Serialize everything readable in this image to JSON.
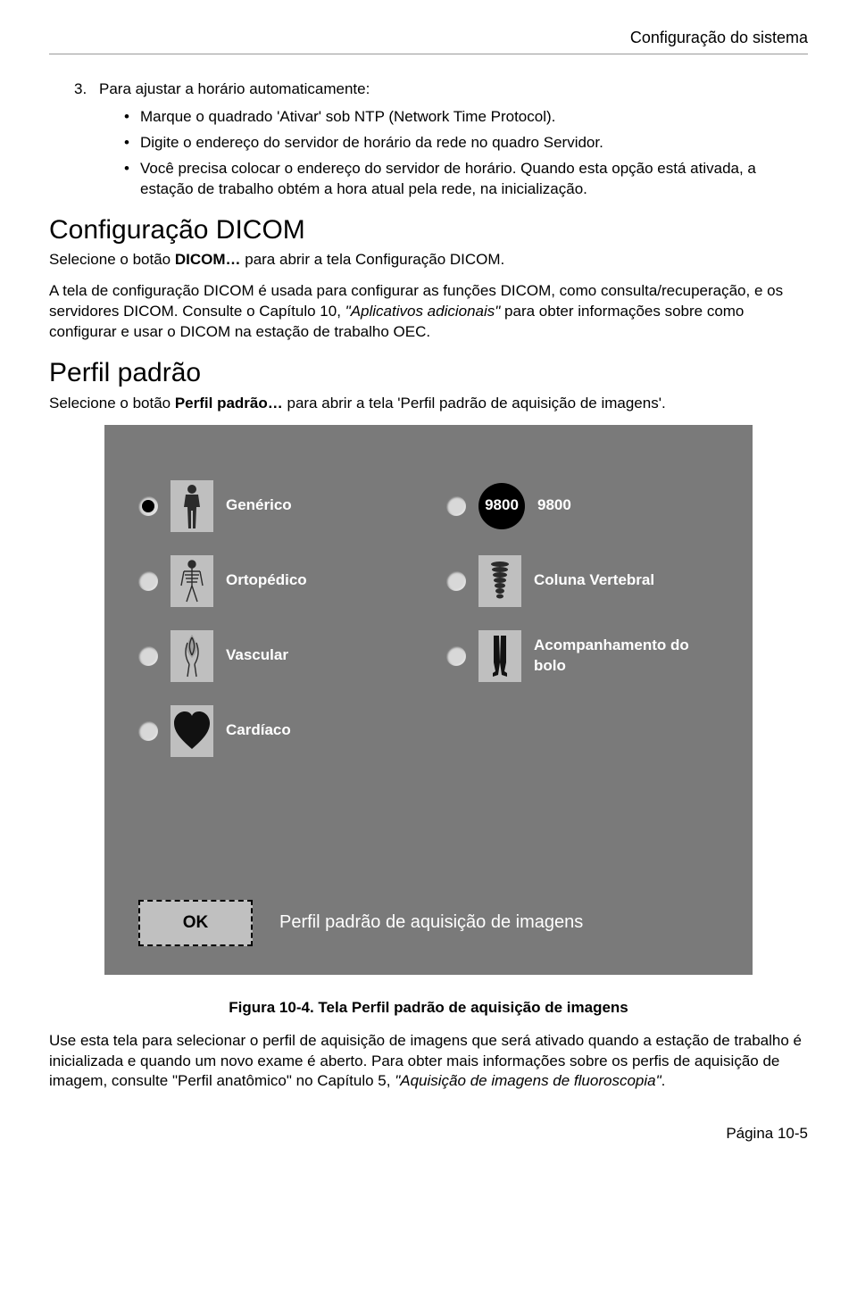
{
  "header": {
    "title": "Configuração do sistema"
  },
  "step3": {
    "num": "3.",
    "text": "Para ajustar a horário automaticamente:",
    "bullets": [
      "Marque o quadrado 'Ativar' sob NTP (Network Time Protocol).",
      "Digite o endereço do servidor de horário da rede no quadro Servidor.",
      "Você precisa colocar o endereço do servidor de horário. Quando esta opção está ativada, a estação de trabalho obtém a hora atual pela rede, na inicialização."
    ]
  },
  "dicom": {
    "heading": "Configuração DICOM",
    "intro_before": "Selecione o botão ",
    "intro_bold": "DICOM…",
    "intro_after": " para abrir a tela Configuração DICOM.",
    "para_before": "A tela de configuração DICOM é usada para configurar as funções DICOM, como consulta/recuperação, e os servidores DICOM. Consulte o Capítulo 10, ",
    "para_italic": "\"Aplicativos adicionais\"",
    "para_after": " para obter informações sobre como configurar e usar o DICOM na estação de trabalho OEC."
  },
  "perfil": {
    "heading": "Perfil padrão",
    "intro_before": "Selecione o botão ",
    "intro_bold": "Perfil padrão…",
    "intro_after": " para abrir a tela 'Perfil padrão de aquisição de imagens'."
  },
  "panel": {
    "background_color": "#7a7a7a",
    "label_color": "#ffffff",
    "icon_bg": "#bfbfbf",
    "options": [
      {
        "key": "generico",
        "label": "Genérico",
        "selected": true,
        "icon": "body"
      },
      {
        "key": "9800",
        "label": "9800",
        "selected": false,
        "icon": "badge9800",
        "badge_text": "9800"
      },
      {
        "key": "ortopedico",
        "label": "Ortopédico",
        "selected": false,
        "icon": "skeleton"
      },
      {
        "key": "coluna",
        "label": "Coluna Vertebral",
        "selected": false,
        "icon": "spine"
      },
      {
        "key": "vascular",
        "label": "Vascular",
        "selected": false,
        "icon": "vessels"
      },
      {
        "key": "bolo",
        "label": "Acompanhamento do bolo",
        "selected": false,
        "icon": "legs"
      },
      {
        "key": "cardiaco",
        "label": "Cardíaco",
        "selected": false,
        "icon": "heart"
      }
    ],
    "ok_label": "OK",
    "inside_caption": "Perfil padrão de aquisição de imagens"
  },
  "figure_caption": "Figura 10-4. Tela Perfil padrão de aquisição de imagens",
  "closing": {
    "before": "Use esta tela para selecionar o perfil de aquisição de imagens que será ativado quando a estação de trabalho é inicializada e quando um novo exame é aberto. Para obter mais informações sobre os perfis de aquisição de imagem, consulte \"Perfil anatômico\" no Capítulo 5, ",
    "italic": "\"Aquisição de imagens de fluoroscopia\"",
    "after": "."
  },
  "page_number": "Página 10-5",
  "icons_svg": {
    "body": "<svg width='34' height='50' viewBox='0 0 34 50'><g fill='#2b2b2b'><circle cx='17' cy='6' r='5'/><path d='M10 12 h14 l2 14 l-4 0 l-1 24 h-3 v-20 h-2 v20 h-3 l-1 -24 h-4 z'/></g></svg>",
    "skeleton": "<svg width='34' height='50' viewBox='0 0 34 50'><g stroke='#2b2b2b' stroke-width='1.4' fill='none'><circle cx='17' cy='6' r='4' fill='#2b2b2b'/><line x1='17' y1='10' x2='17' y2='30'/><line x1='8' y1='14' x2='26' y2='14'/><line x1='9' y1='18' x2='25' y2='18'/><line x1='10' y1='22' x2='24' y2='22'/><line x1='11' y1='26' x2='23' y2='26'/><line x1='17' y1='30' x2='11' y2='48'/><line x1='17' y1='30' x2='23' y2='48'/><line x1='8' y1='14' x2='5' y2='30'/><line x1='26' y1='14' x2='29' y2='30'/></g></svg>",
    "vessels": "<svg width='34' height='50' viewBox='0 0 34 50'><g stroke='#2b2b2b' stroke-width='1.4' fill='none'><path d='M17 2 C10 14 10 18 17 26 C24 18 24 14 17 2 Z' fill='#2b2b2b' opacity='0.2'/><path d='M17 4 C14 10 13 16 17 24'/><path d='M17 4 C20 10 21 16 17 24'/><path d='M12 10 C9 18 9 26 14 34'/><path d='M22 10 C25 18 25 26 20 34'/><path d='M14 34 L12 48'/><path d='M20 34 L22 48'/></g></svg>",
    "heart": "<svg width='40' height='44' viewBox='0 0 40 44'><path fill='#111' d='M20 42 C6 30 0 22 0 13 C0 5 6 0 12 0 C16 0 19 2 20 5 C21 2 24 0 28 0 C34 0 40 5 40 13 C40 22 34 30 20 42 Z'/></svg>",
    "spine": "<svg width='34' height='50' viewBox='0 0 34 50'><g fill='#2b2b2b'><ellipse cx='17' cy='6' rx='10' ry='3'/><ellipse cx='17' cy='12' rx='9' ry='3'/><ellipse cx='17' cy='18' rx='8' ry='3'/><ellipse cx='17' cy='24' rx='7' ry='3'/><ellipse cx='17' cy='30' rx='6' ry='3'/><ellipse cx='17' cy='36' rx='5' ry='3'/><ellipse cx='17' cy='42' rx='4' ry='2.5'/></g></svg>",
    "legs": "<svg width='34' height='50' viewBox='0 0 34 50'><g fill='#111'><path d='M10 2 h6 l1 30 l-2 14 l-6 2 l0 -4 l3 -2 l-2 -10 z'/><path d='M18 2 h6 l0 30 l-2 10 l3 2 l0 4 l-6 -2 l-2 -14 z'/></g></svg>"
  }
}
